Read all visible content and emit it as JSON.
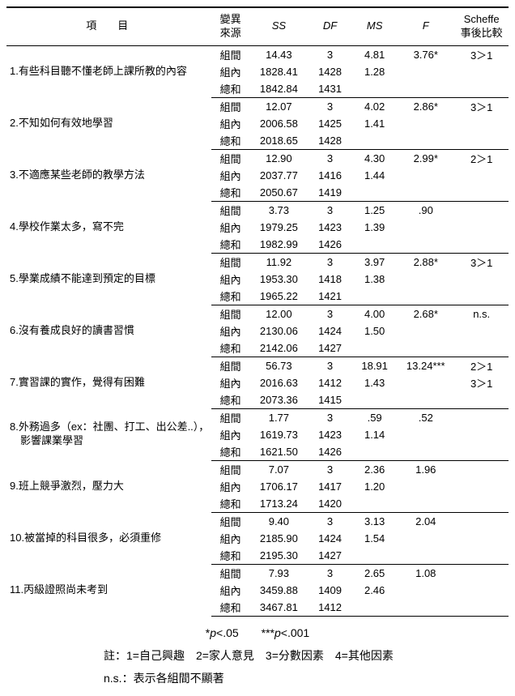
{
  "header": {
    "item": "項目",
    "source": "變異\n來源",
    "ss": "SS",
    "df": "DF",
    "ms": "MS",
    "f": "F",
    "scheffe": "Scheffe\n事後比較"
  },
  "rows": [
    {
      "label": "1.有些科目聽不懂老師上課所教的內容",
      "sub": [
        {
          "src": "組間",
          "ss": "14.43",
          "df": "3",
          "ms": "4.81",
          "f": "3.76*",
          "sch": "3＞1"
        },
        {
          "src": "組內",
          "ss": "1828.41",
          "df": "1428",
          "ms": "1.28",
          "f": "",
          "sch": ""
        },
        {
          "src": "總和",
          "ss": "1842.84",
          "df": "1431",
          "ms": "",
          "f": "",
          "sch": ""
        }
      ]
    },
    {
      "label": "2.不知如何有效地學習",
      "sub": [
        {
          "src": "組間",
          "ss": "12.07",
          "df": "3",
          "ms": "4.02",
          "f": "2.86*",
          "sch": "3＞1"
        },
        {
          "src": "組內",
          "ss": "2006.58",
          "df": "1425",
          "ms": "1.41",
          "f": "",
          "sch": ""
        },
        {
          "src": "總和",
          "ss": "2018.65",
          "df": "1428",
          "ms": "",
          "f": "",
          "sch": ""
        }
      ]
    },
    {
      "label": "3.不適應某些老師的教學方法",
      "sub": [
        {
          "src": "組間",
          "ss": "12.90",
          "df": "3",
          "ms": "4.30",
          "f": "2.99*",
          "sch": "2＞1"
        },
        {
          "src": "組內",
          "ss": "2037.77",
          "df": "1416",
          "ms": "1.44",
          "f": "",
          "sch": ""
        },
        {
          "src": "總和",
          "ss": "2050.67",
          "df": "1419",
          "ms": "",
          "f": "",
          "sch": ""
        }
      ]
    },
    {
      "label": "4.學校作業太多，寫不完",
      "sub": [
        {
          "src": "組間",
          "ss": "3.73",
          "df": "3",
          "ms": "1.25",
          "f": ".90",
          "sch": ""
        },
        {
          "src": "組內",
          "ss": "1979.25",
          "df": "1423",
          "ms": "1.39",
          "f": "",
          "sch": ""
        },
        {
          "src": "總和",
          "ss": "1982.99",
          "df": "1426",
          "ms": "",
          "f": "",
          "sch": ""
        }
      ]
    },
    {
      "label": "5.學業成績不能達到預定的目標",
      "sub": [
        {
          "src": "組間",
          "ss": "11.92",
          "df": "3",
          "ms": "3.97",
          "f": "2.88*",
          "sch": "3＞1"
        },
        {
          "src": "組內",
          "ss": "1953.30",
          "df": "1418",
          "ms": "1.38",
          "f": "",
          "sch": ""
        },
        {
          "src": "總和",
          "ss": "1965.22",
          "df": "1421",
          "ms": "",
          "f": "",
          "sch": ""
        }
      ]
    },
    {
      "label": "6.沒有養成良好的讀書習慣",
      "sub": [
        {
          "src": "組間",
          "ss": "12.00",
          "df": "3",
          "ms": "4.00",
          "f": "2.68*",
          "sch": "n.s."
        },
        {
          "src": "組內",
          "ss": "2130.06",
          "df": "1424",
          "ms": "1.50",
          "f": "",
          "sch": ""
        },
        {
          "src": "總和",
          "ss": "2142.06",
          "df": "1427",
          "ms": "",
          "f": "",
          "sch": ""
        }
      ]
    },
    {
      "label": "7.實習課的實作，覺得有困難",
      "sub": [
        {
          "src": "組間",
          "ss": "56.73",
          "df": "3",
          "ms": "18.91",
          "f": "13.24***",
          "sch": "2＞1"
        },
        {
          "src": "組內",
          "ss": "2016.63",
          "df": "1412",
          "ms": "1.43",
          "f": "",
          "sch": "3＞1"
        },
        {
          "src": "總和",
          "ss": "2073.36",
          "df": "1415",
          "ms": "",
          "f": "",
          "sch": ""
        }
      ]
    },
    {
      "label": "8.外務過多（ex：社團、打工、出公差..），\n　影響課業學習",
      "sub": [
        {
          "src": "組間",
          "ss": "1.77",
          "df": "3",
          "ms": ".59",
          "f": ".52",
          "sch": ""
        },
        {
          "src": "組內",
          "ss": "1619.73",
          "df": "1423",
          "ms": "1.14",
          "f": "",
          "sch": ""
        },
        {
          "src": "總和",
          "ss": "1621.50",
          "df": "1426",
          "ms": "",
          "f": "",
          "sch": ""
        }
      ]
    },
    {
      "label": "9.班上競爭激烈，壓力大",
      "sub": [
        {
          "src": "組間",
          "ss": "7.07",
          "df": "3",
          "ms": "2.36",
          "f": "1.96",
          "sch": ""
        },
        {
          "src": "組內",
          "ss": "1706.17",
          "df": "1417",
          "ms": "1.20",
          "f": "",
          "sch": ""
        },
        {
          "src": "總和",
          "ss": "1713.24",
          "df": "1420",
          "ms": "",
          "f": "",
          "sch": ""
        }
      ]
    },
    {
      "label": "10.被當掉的科目很多，必須重修",
      "sub": [
        {
          "src": "組間",
          "ss": "9.40",
          "df": "3",
          "ms": "3.13",
          "f": "2.04",
          "sch": ""
        },
        {
          "src": "組內",
          "ss": "2185.90",
          "df": "1424",
          "ms": "1.54",
          "f": "",
          "sch": ""
        },
        {
          "src": "總和",
          "ss": "2195.30",
          "df": "1427",
          "ms": "",
          "f": "",
          "sch": ""
        }
      ]
    },
    {
      "label": "11.丙級證照尚未考到",
      "sub": [
        {
          "src": "組間",
          "ss": "7.93",
          "df": "3",
          "ms": "2.65",
          "f": "1.08",
          "sch": ""
        },
        {
          "src": "組內",
          "ss": "3459.88",
          "df": "1409",
          "ms": "2.46",
          "f": "",
          "sch": ""
        },
        {
          "src": "總和",
          "ss": "3467.81",
          "df": "1412",
          "ms": "",
          "f": "",
          "sch": ""
        }
      ]
    }
  ],
  "foot": {
    "sig": "*p<.05　　***p<.001",
    "legend": "註：1=自己興趣　2=家人意見　3=分數因素　4=其他因素",
    "ns": "n.s.：表示各組間不顯著"
  }
}
